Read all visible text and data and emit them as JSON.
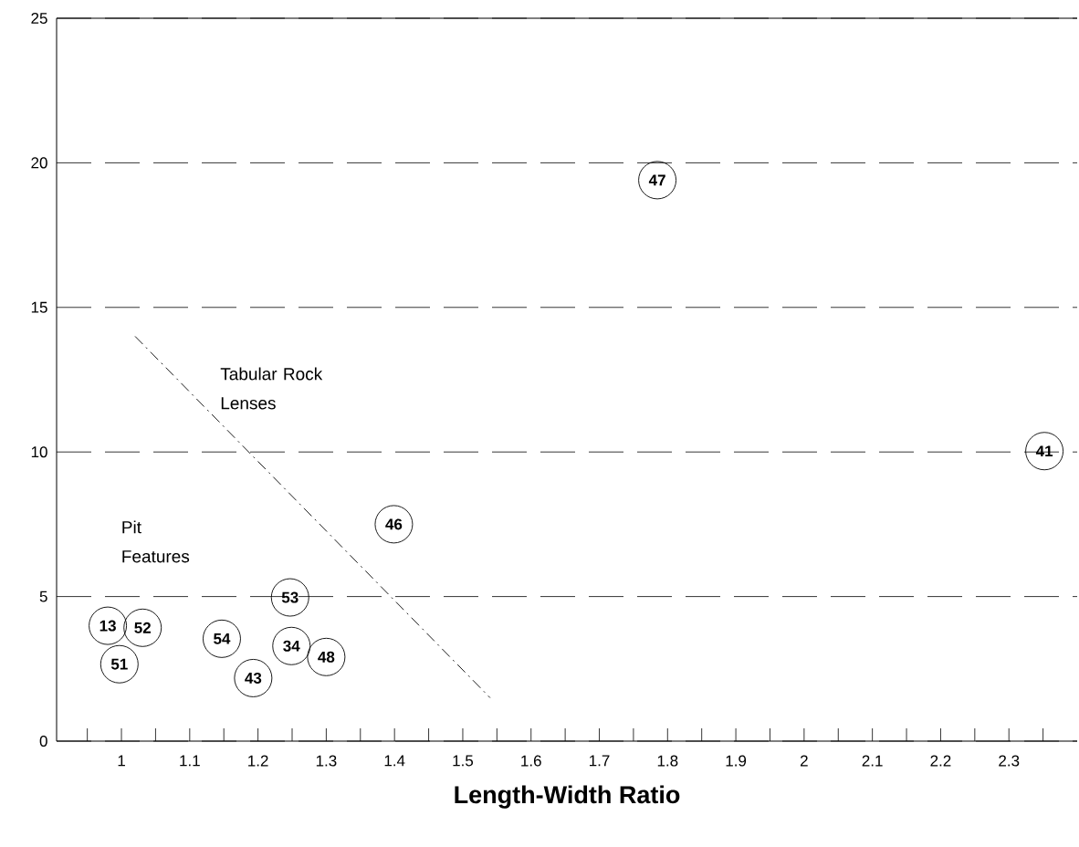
{
  "chart_data": {
    "type": "scatter",
    "xlabel": "Length-Width Ratio",
    "xlim": [
      0.905,
      2.4
    ],
    "ylim": [
      0,
      25
    ],
    "xticks": [
      {
        "value": 0.95,
        "label": null
      },
      1,
      {
        "value": 1.05,
        "label": null
      },
      1.1,
      {
        "value": 1.15,
        "label": null
      },
      1.2,
      {
        "value": 1.25,
        "label": null
      },
      1.3,
      {
        "value": 1.35,
        "label": null
      },
      1.4,
      {
        "value": 1.45,
        "label": null
      },
      1.5,
      {
        "value": 1.55,
        "label": null
      },
      1.6,
      {
        "value": 1.65,
        "label": null
      },
      1.7,
      {
        "value": 1.75,
        "label": null
      },
      1.8,
      {
        "value": 1.85,
        "label": null
      },
      1.9,
      {
        "value": 1.95,
        "label": null
      },
      2,
      {
        "value": 2.05,
        "label": null
      },
      2.1,
      {
        "value": 2.15,
        "label": null
      },
      2.2,
      {
        "value": 2.25,
        "label": null
      },
      2.3,
      {
        "value": 2.35,
        "label": null
      }
    ],
    "yticks": [
      0,
      5,
      10,
      15,
      20,
      25
    ],
    "grid": "y",
    "marker": "circle",
    "series": [
      {
        "color": "#000000",
        "x": [
          1.785,
          2.352,
          1.399,
          1.247,
          0.98,
          1.031,
          0.997,
          1.147,
          1.249,
          1.3,
          1.193
        ],
        "values": [
          19.4,
          10.03,
          7.5,
          4.97,
          3.99,
          3.92,
          2.66,
          3.54,
          3.29,
          2.91,
          2.18
        ]
      },
      {
        "type": "line",
        "color": "#000000",
        "line_style": "dashed",
        "marker": "none",
        "x": [
          1.02,
          1.54
        ],
        "values": [
          14,
          1.5
        ]
      }
    ],
    "annotations": [
      {
        "text": "47",
        "x": 1.785,
        "y": 19.4
      },
      {
        "text": "41",
        "x": 2.352,
        "y": 10.03
      },
      {
        "text": "46",
        "x": 1.399,
        "y": 7.5
      },
      {
        "text": "53",
        "x": 1.247,
        "y": 4.97
      },
      {
        "text": "13",
        "x": 0.98,
        "y": 3.99
      },
      {
        "text": "52",
        "x": 1.031,
        "y": 3.92
      },
      {
        "text": "51",
        "x": 0.997,
        "y": 2.66
      },
      {
        "text": "54",
        "x": 1.147,
        "y": 3.54
      },
      {
        "text": "34",
        "x": 1.249,
        "y": 3.29
      },
      {
        "text": "48",
        "x": 1.3,
        "y": 2.91
      },
      {
        "text": "43",
        "x": 1.193,
        "y": 2.18
      },
      "Tabular Rock Lenses",
      "Pit Features"
    ]
  }
}
